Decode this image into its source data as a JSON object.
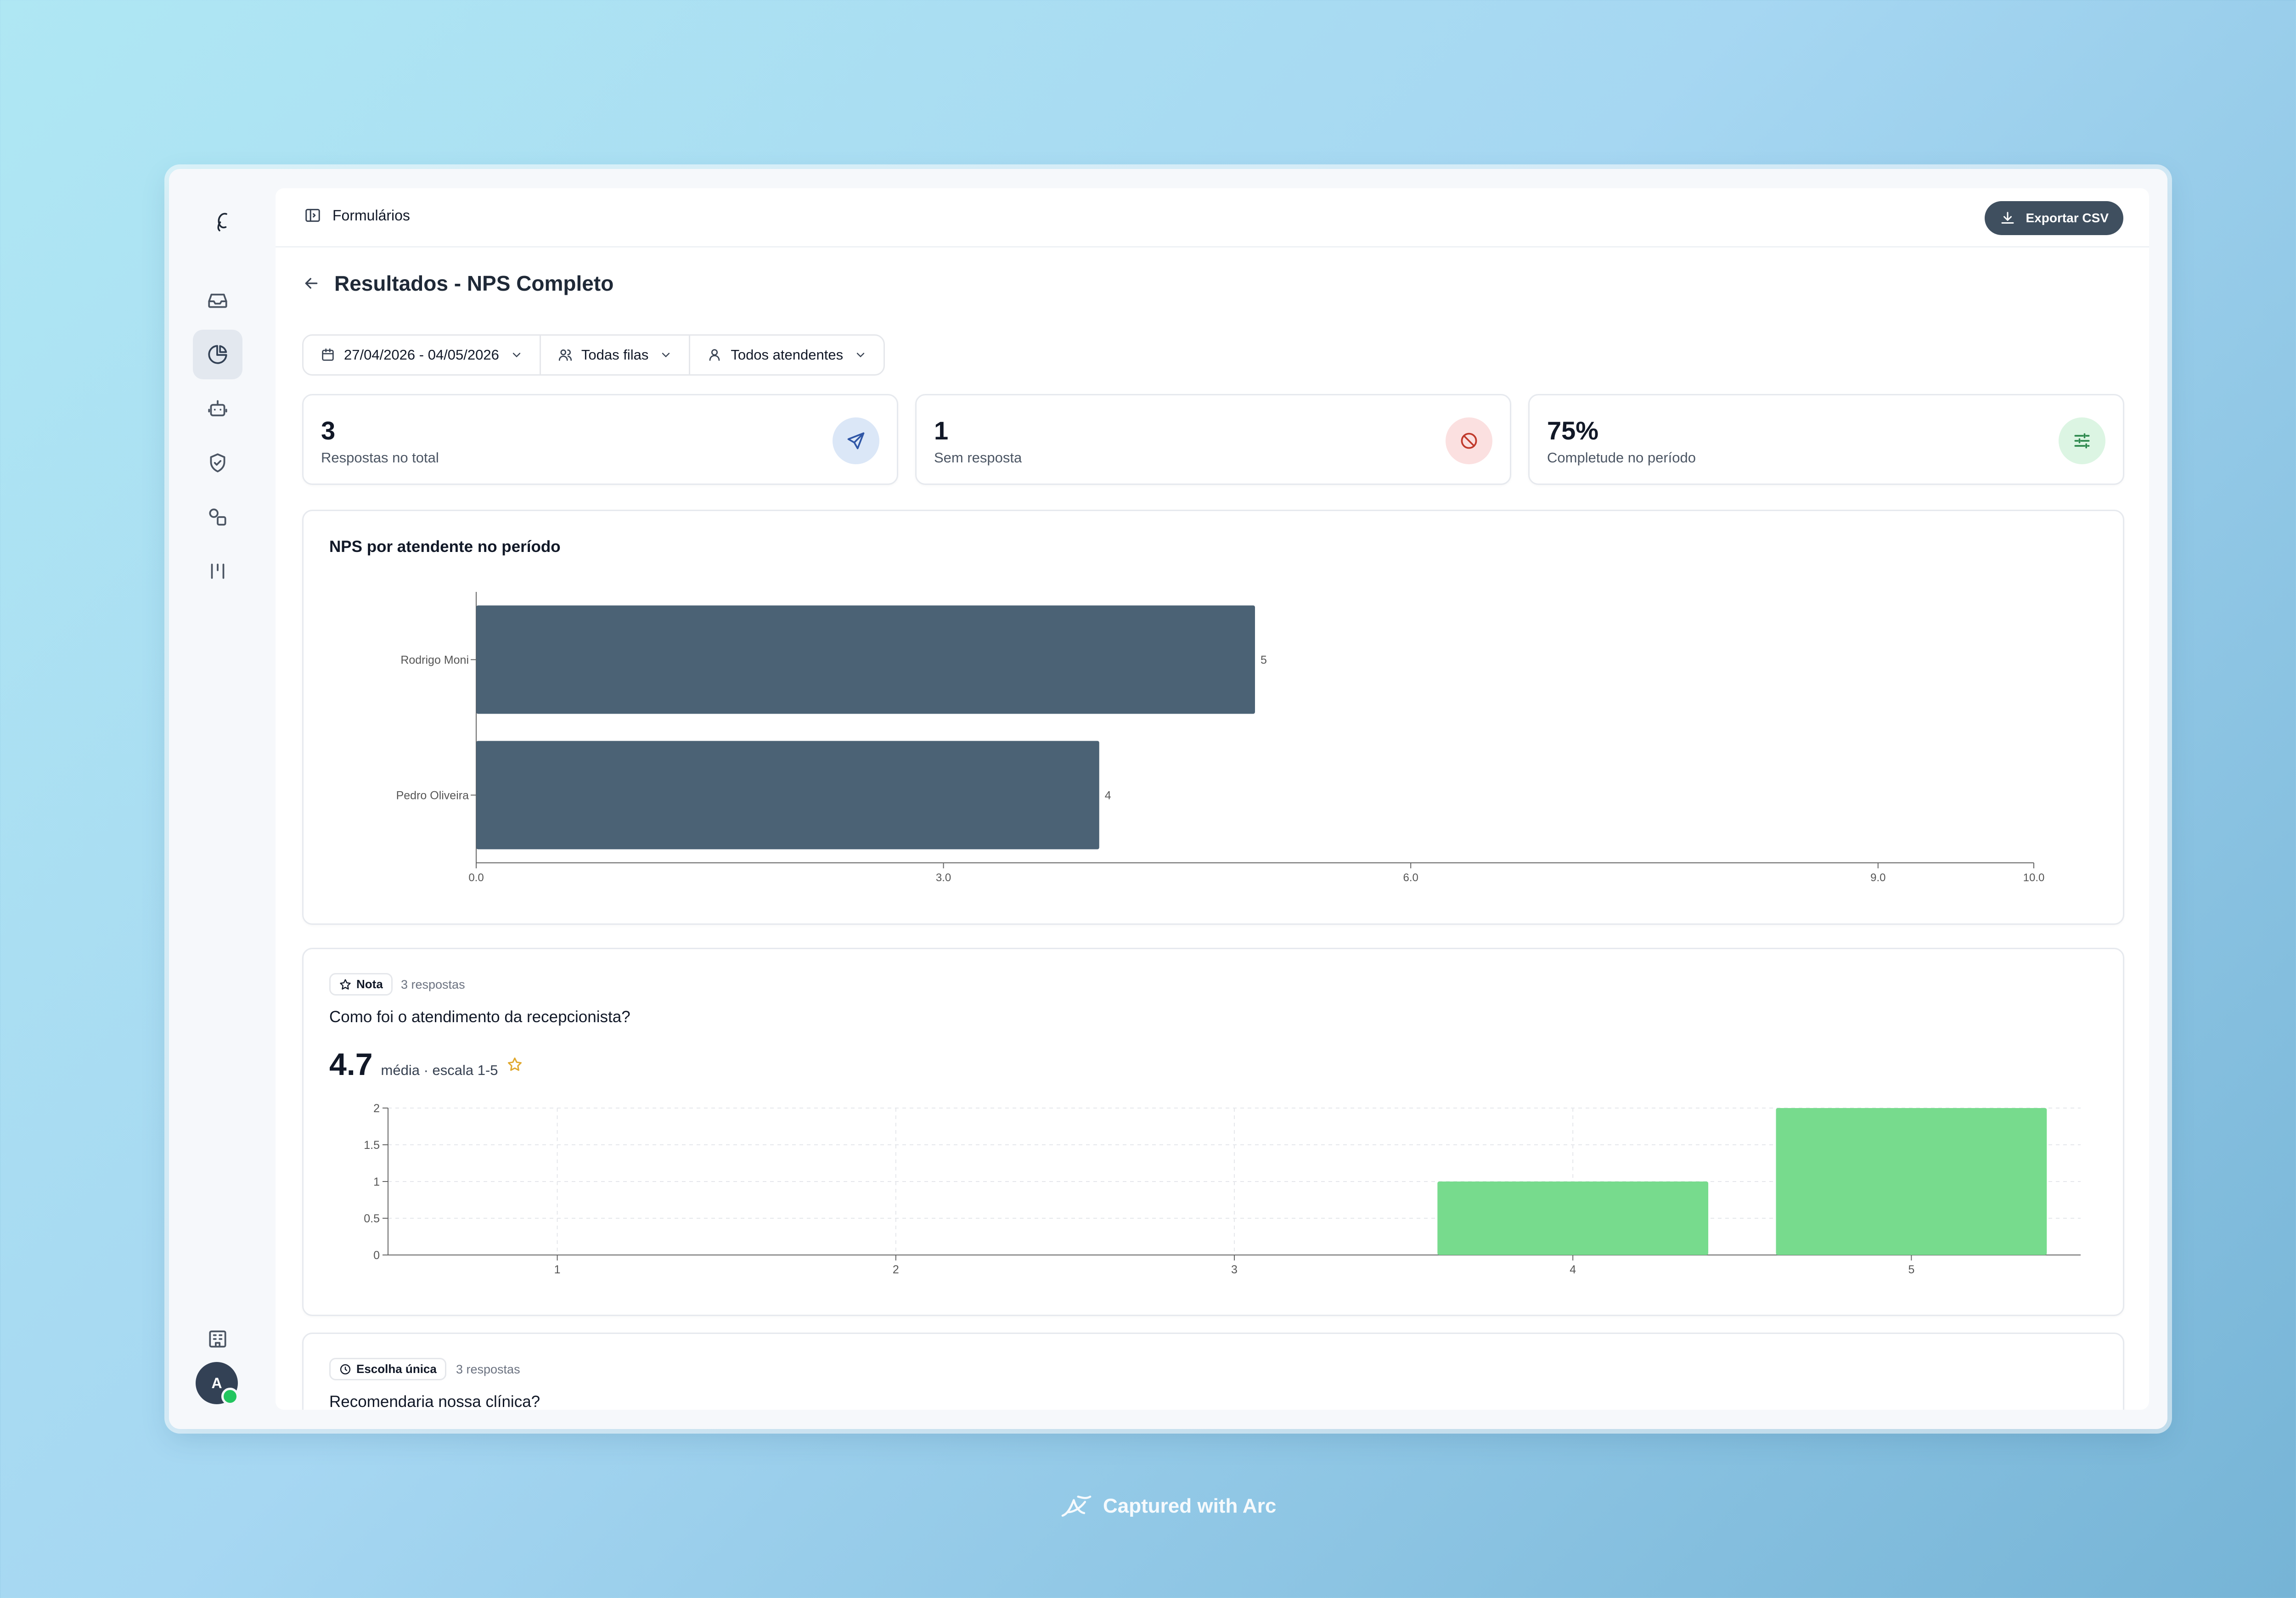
{
  "header": {
    "breadcrumb": "Formulários",
    "export_label": "Exportar CSV"
  },
  "page": {
    "title": "Resultados - NPS Completo"
  },
  "filters": {
    "date_range": "27/04/2026 - 04/05/2026",
    "queues": "Todas filas",
    "agents": "Todos atendentes"
  },
  "stats": [
    {
      "value": "3",
      "label": "Respostas no total",
      "icon": "send-icon",
      "bg": "#dbe7f7",
      "color": "#2f56a6"
    },
    {
      "value": "1",
      "label": "Sem resposta",
      "icon": "ban-icon",
      "bg": "#fbe0e0",
      "color": "#c0392b"
    },
    {
      "value": "75%",
      "label": "Completude no período",
      "icon": "sliders-icon",
      "bg": "#dcf5e3",
      "color": "#2f8a4f"
    }
  ],
  "nps_chart": {
    "title": "NPS por atendente no período"
  },
  "question1": {
    "type_label": "Nota",
    "responses": "3 respostas",
    "text": "Como foi o atendimento da recepcionista?",
    "average": "4.7",
    "average_caption": "média · escala 1-5"
  },
  "question2": {
    "type_label": "Escolha única",
    "responses": "3 respostas",
    "text": "Recomendaria nossa clínica?"
  },
  "chart_data": [
    {
      "type": "bar",
      "orientation": "horizontal",
      "title": "NPS por atendente no período",
      "categories": [
        "Rodrigo Moni",
        "Pedro Oliveira"
      ],
      "values": [
        5,
        4
      ],
      "xlim": [
        0,
        10
      ],
      "xticks": [
        "0.0",
        "3.0",
        "6.0",
        "9.0",
        "10.0"
      ],
      "bar_color": "#4b6275",
      "grid": false
    },
    {
      "type": "bar",
      "categories": [
        "1",
        "2",
        "3",
        "4",
        "5"
      ],
      "values": [
        0,
        0,
        0,
        1,
        2
      ],
      "ylim": [
        0,
        2
      ],
      "yticks": [
        "0",
        "0.5",
        "1",
        "1.5",
        "2"
      ],
      "bar_color": "#77db8d",
      "grid": true
    }
  ],
  "watermark": "Captured with Arc"
}
